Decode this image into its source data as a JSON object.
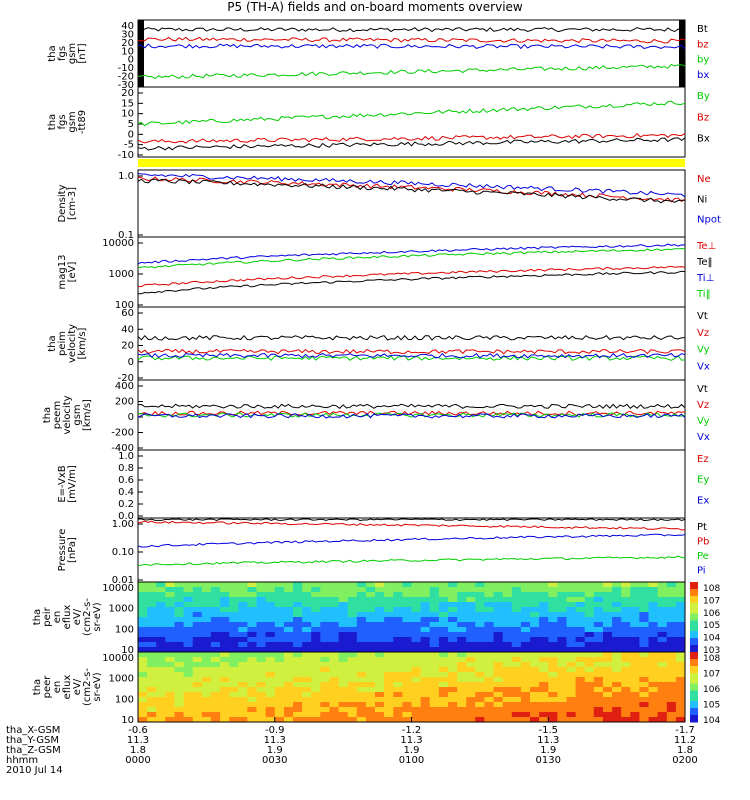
{
  "title": "P5 (TH-A) fields and on-board moments overview",
  "date": "2010 Jul 14",
  "colors": {
    "black": "#000000",
    "red": "#dd0000",
    "green": "#00cc00",
    "blue": "#0000dd",
    "yellow": "#ffff00"
  },
  "chart_data": [
    {
      "id": "p1",
      "type": "line",
      "ylabel": [
        "tha",
        "fgs",
        "gsm",
        "[nT]"
      ],
      "ylim": [
        -30,
        40
      ],
      "ticks": [
        "40",
        "30",
        "20",
        "10",
        "0",
        "-10",
        "-20",
        "-30"
      ],
      "series": [
        {
          "name": "Bt",
          "color": "black",
          "y0": 30,
          "y1": 30
        },
        {
          "name": "bz",
          "color": "red",
          "y0": 20,
          "y1": 18
        },
        {
          "name": "by",
          "color": "green",
          "y0": -20,
          "y1": -8
        },
        {
          "name": "bx",
          "color": "blue",
          "y0": 13,
          "y1": 12
        }
      ]
    },
    {
      "id": "p2",
      "type": "line",
      "ylabel": [
        "tha",
        "fgs",
        "gsm",
        "-tt89"
      ],
      "ylim": [
        -12,
        20
      ],
      "ticks": [
        "20",
        "15",
        "10",
        "5",
        "0",
        "-5",
        "-10"
      ],
      "series": [
        {
          "name": "By",
          "color": "green",
          "y0": 3,
          "y1": 13
        },
        {
          "name": "Bz",
          "color": "red",
          "y0": -5,
          "y1": -2
        },
        {
          "name": "Bx",
          "color": "black",
          "y0": -8,
          "y1": -4
        }
      ]
    },
    {
      "id": "p3",
      "type": "line",
      "ylabel": [
        "Density",
        "[cm-3]"
      ],
      "ylim": [
        0.1,
        1.0
      ],
      "scale": "log",
      "ticks": [
        "1.0",
        "0.1"
      ],
      "series": [
        {
          "name": "Ne",
          "color": "red",
          "y0": 0.75,
          "y1": 0.35
        },
        {
          "name": "Ni",
          "color": "black",
          "y0": 0.7,
          "y1": 0.33
        },
        {
          "name": "Npot",
          "color": "blue",
          "y0": 0.85,
          "y1": 0.42
        }
      ]
    },
    {
      "id": "p4",
      "type": "line",
      "ylabel": [
        "mag13",
        "[eV]"
      ],
      "ylim": [
        100,
        10000
      ],
      "scale": "log",
      "ticks": [
        "10000",
        "1000",
        "100"
      ],
      "series": [
        {
          "name": "Te⊥",
          "color": "red",
          "y0": 400,
          "y1": 1400
        },
        {
          "name": "Te‖",
          "color": "black",
          "y0": 250,
          "y1": 1000
        },
        {
          "name": "Ti⊥",
          "color": "blue",
          "y0": 1800,
          "y1": 6000
        },
        {
          "name": "Ti‖",
          "color": "green",
          "y0": 1300,
          "y1": 4500
        }
      ]
    },
    {
      "id": "p5",
      "type": "line",
      "ylabel": [
        "tha",
        "peim",
        "velocity",
        "[km/s]"
      ],
      "ylim": [
        -30,
        60
      ],
      "ticks": [
        "60",
        "40",
        "20",
        "0",
        "-20"
      ],
      "series": [
        {
          "name": "Vt",
          "color": "black",
          "y0": 22,
          "y1": 22
        },
        {
          "name": "Vz",
          "color": "red",
          "y0": 5,
          "y1": 5
        },
        {
          "name": "Vy",
          "color": "green",
          "y0": -3,
          "y1": -3
        },
        {
          "name": "Vx",
          "color": "blue",
          "y0": 0,
          "y1": 0
        }
      ]
    },
    {
      "id": "p6",
      "type": "line",
      "ylabel": [
        "tha",
        "peem",
        "velocity",
        "gsm",
        "[km/s]"
      ],
      "ylim": [
        -400,
        400
      ],
      "ticks": [
        "400",
        "200",
        "0",
        "-200",
        "-400"
      ],
      "series": [
        {
          "name": "Vt",
          "color": "black",
          "y0": 100,
          "y1": 100
        },
        {
          "name": "Vz",
          "color": "red",
          "y0": 20,
          "y1": 20
        },
        {
          "name": "Vy",
          "color": "green",
          "y0": 0,
          "y1": 0
        },
        {
          "name": "Vx",
          "color": "blue",
          "y0": -10,
          "y1": -10
        }
      ]
    },
    {
      "id": "p7",
      "type": "line",
      "ylabel": [
        "E=-VxB",
        "[mV/m]"
      ],
      "ylim": [
        0,
        1.0
      ],
      "ticks": [
        "1.0",
        "0.8",
        "0.6",
        "0.4",
        "0.2",
        "0.0"
      ],
      "series": [
        {
          "name": "Ez",
          "color": "red"
        },
        {
          "name": "Ey",
          "color": "green"
        },
        {
          "name": "Ex",
          "color": "blue"
        }
      ]
    },
    {
      "id": "p8",
      "type": "line",
      "ylabel": [
        "Pressure",
        "[nPa]"
      ],
      "ylim": [
        0.01,
        1.0
      ],
      "scale": "log",
      "ticks": [
        "1.00",
        "0.10",
        "0.01"
      ],
      "series": [
        {
          "name": "Pt",
          "color": "black",
          "y0": 0.9,
          "y1": 0.9
        },
        {
          "name": "Pb",
          "color": "red",
          "y0": 0.75,
          "y1": 0.45
        },
        {
          "name": "Pe",
          "color": "green",
          "y0": 0.035,
          "y1": 0.06
        },
        {
          "name": "Pi",
          "color": "blue",
          "y0": 0.13,
          "y1": 0.3
        }
      ]
    },
    {
      "id": "p9",
      "type": "heatmap",
      "ylabel": [
        "tha",
        "peir",
        "en",
        "eflux",
        "eV/",
        "(cm2-s-",
        "sr-eV)"
      ],
      "ylim": [
        10,
        10000
      ],
      "scale": "log",
      "ticks": [
        "10000",
        "1000",
        "100",
        "10"
      ],
      "colorbar": [
        "10^8",
        "10^7",
        "10^6",
        "10^5",
        "10^4",
        "10^3"
      ]
    },
    {
      "id": "p10",
      "type": "heatmap",
      "ylabel": [
        "tha",
        "peer",
        "en",
        "eflux",
        "eV/",
        "(cm2-s-",
        "sr-eV)"
      ],
      "ylim": [
        10,
        10000
      ],
      "scale": "log",
      "ticks": [
        "10000",
        "1000",
        "100",
        "10"
      ],
      "colorbar": [
        "10^8",
        "10^7",
        "10^6",
        "10^5",
        "10^4"
      ]
    }
  ],
  "x_axis": {
    "labels": [
      "tha_X-GSM",
      "tha_Y-GSM",
      "tha_Z-GSM",
      "hhmm"
    ],
    "columns": [
      [
        "-0.6",
        "11.3",
        "1.8",
        "0000"
      ],
      [
        "-0.9",
        "11.3",
        "1.9",
        "0030"
      ],
      [
        "-1.2",
        "11.3",
        "1.9",
        "0100"
      ],
      [
        "-1.5",
        "11.3",
        "1.9",
        "0130"
      ],
      [
        "-1.7",
        "11.2",
        "1.8",
        "0200"
      ]
    ]
  }
}
